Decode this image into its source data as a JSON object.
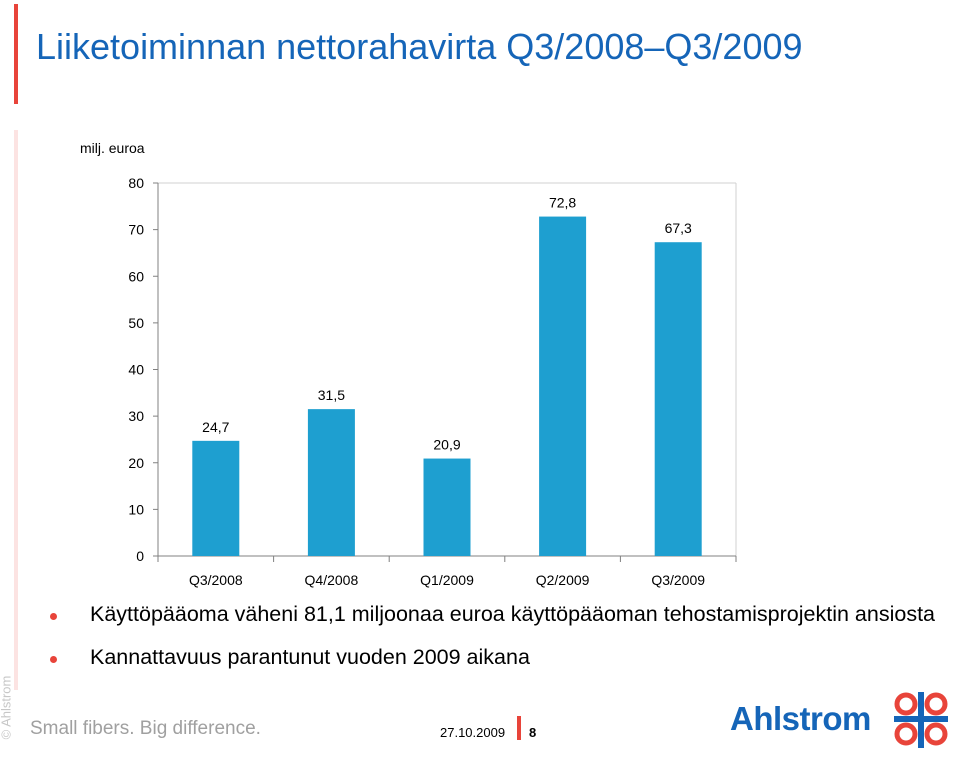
{
  "title": "Liiketoiminnan nettorahavirta Q3/2008–Q3/2009",
  "unit_label": "milj. euroa",
  "chart_data": {
    "type": "bar",
    "categories": [
      "Q3/2008",
      "Q4/2008",
      "Q1/2009",
      "Q2/2009",
      "Q3/2009"
    ],
    "values": [
      24.7,
      31.5,
      20.9,
      72.8,
      67.3
    ],
    "value_labels": [
      "24,7",
      "31,5",
      "20,9",
      "72,8",
      "67,3"
    ],
    "yticks": [
      0,
      10,
      20,
      30,
      40,
      50,
      60,
      70,
      80
    ],
    "ylim": [
      0,
      80
    ],
    "bar_color": "#1e9fd0",
    "grid": false
  },
  "bullets": [
    "Käyttöpääoma väheni 81,1 miljoonaa euroa käyttöpääoman tehostamisprojektin ansiosta",
    "Kannattavuus parantunut vuoden 2009 aikana"
  ],
  "footer": {
    "copyright": "© Ahlstrom",
    "tagline": "Small fibers. Big difference.",
    "date": "27.10.2009",
    "page": "8",
    "logo": "Ahlstrom"
  },
  "colors": {
    "accent": "#e8443a",
    "brand": "#1565b8"
  }
}
